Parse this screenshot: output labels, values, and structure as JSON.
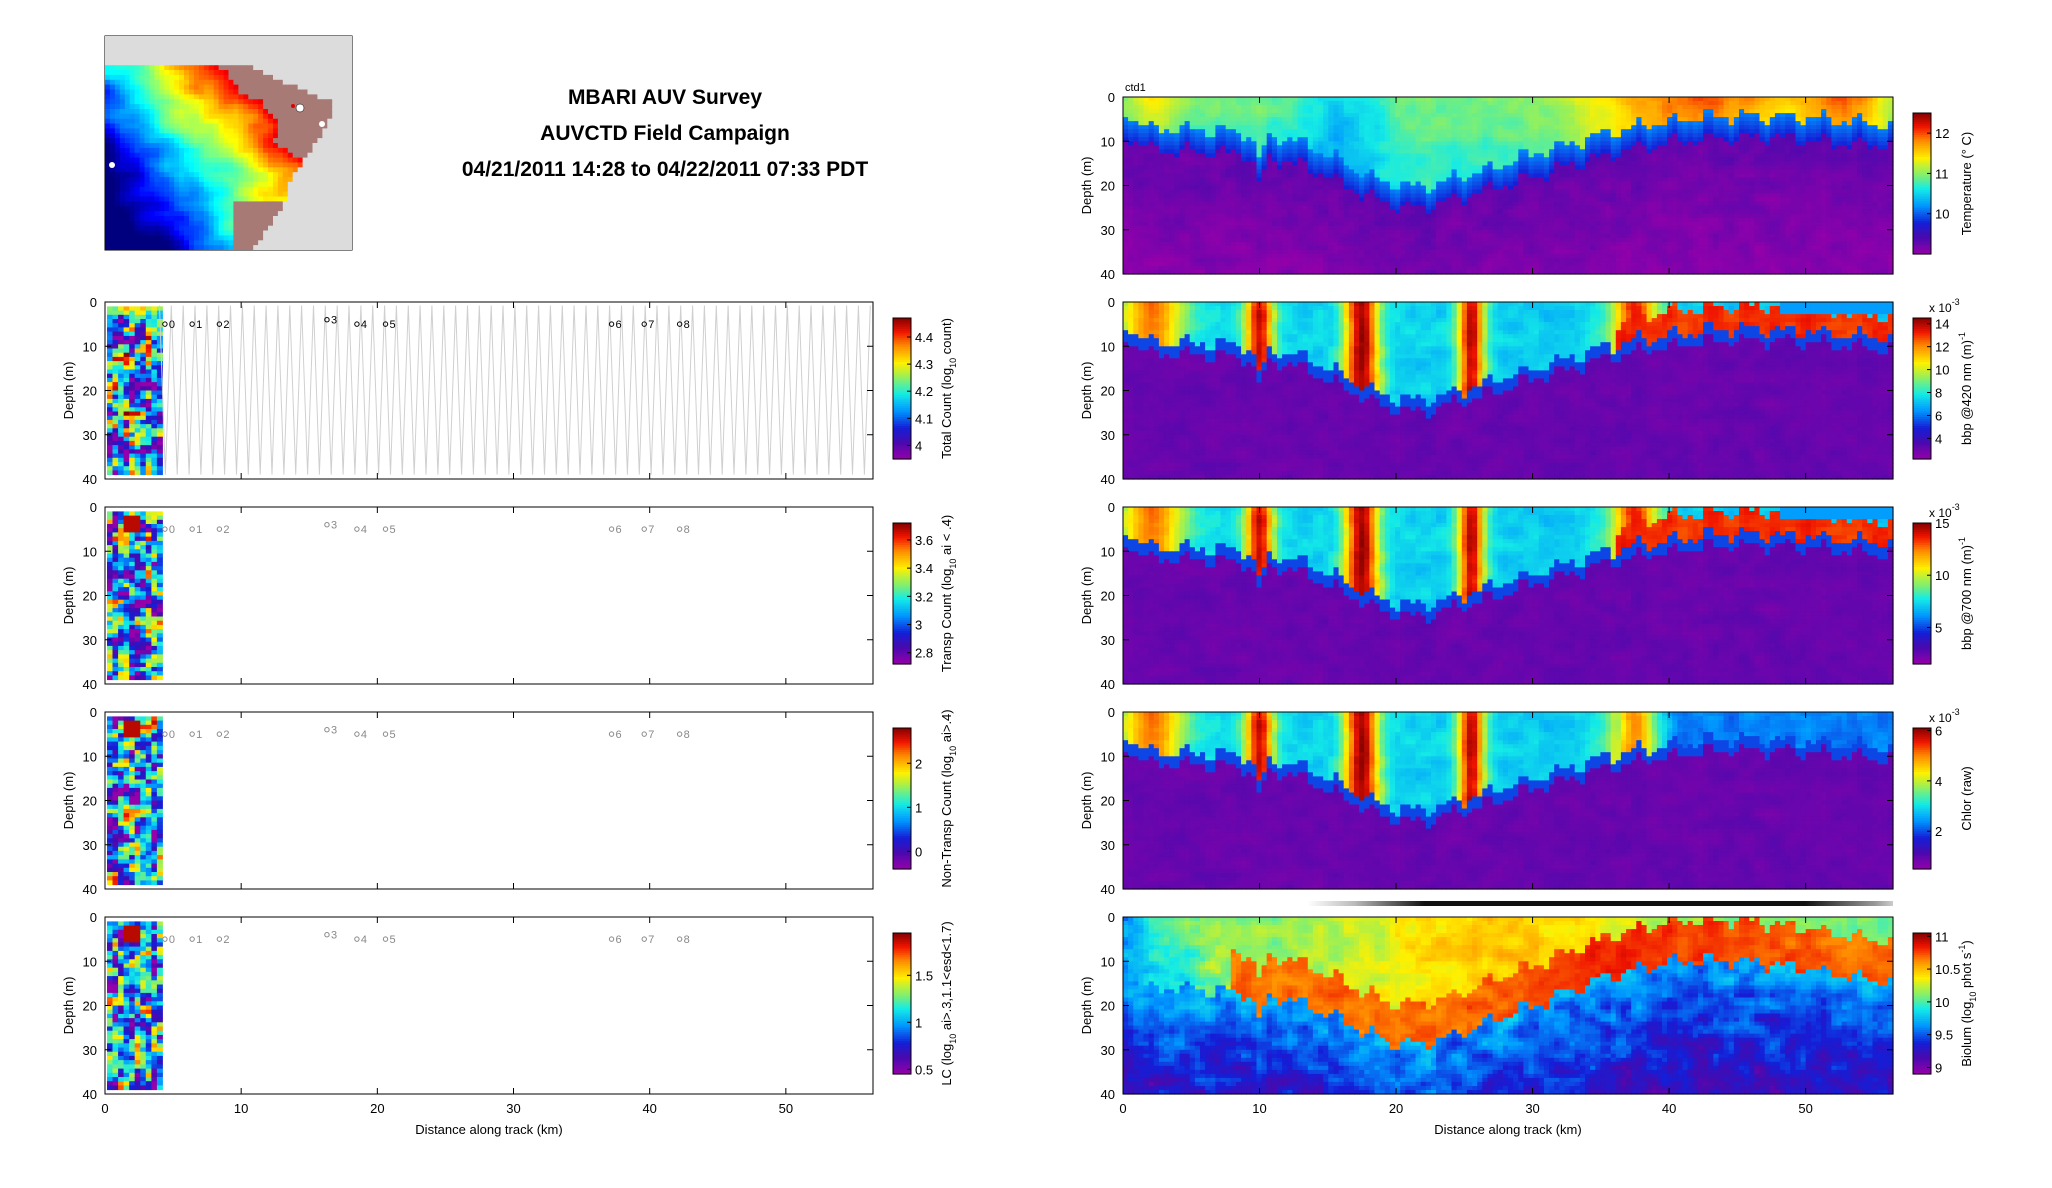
{
  "header": {
    "title": "MBARI AUV Survey",
    "subtitle": "AUVCTD Field Campaign",
    "period": "04/21/2011 14:28 to 04/22/2011 07:33 PDT"
  },
  "map": {
    "land_color": "#a87a76",
    "colormap": "jet"
  },
  "chart_data": [
    {
      "type": "heatmap",
      "panel": "left-1",
      "ylabel": "Depth (m)",
      "xlabel": "",
      "xlim": [
        0,
        56.4
      ],
      "ylim": [
        40,
        0
      ],
      "yticks": [
        0,
        10,
        20,
        30,
        40
      ],
      "xticks": [],
      "colorbar": {
        "label": "Total Count (log",
        "label_sub": "10",
        "label_tail": " count)",
        "min": 3.95,
        "max": 4.47,
        "ticks": [
          4,
          4.1,
          4.2,
          4.3,
          4.4
        ]
      },
      "data_extent_km": [
        0,
        4.0
      ],
      "track_lines": true,
      "stations": [
        {
          "label": "0",
          "x": 4.4,
          "y": 5
        },
        {
          "label": "1",
          "x": 6.4,
          "y": 5
        },
        {
          "label": "2",
          "x": 8.4,
          "y": 5
        },
        {
          "label": "3",
          "x": 16.3,
          "y": 4
        },
        {
          "label": "4",
          "x": 18.5,
          "y": 5
        },
        {
          "label": "5",
          "x": 20.6,
          "y": 5
        },
        {
          "label": "6",
          "x": 37.2,
          "y": 5
        },
        {
          "label": "7",
          "x": 39.6,
          "y": 5
        },
        {
          "label": "8",
          "x": 42.2,
          "y": 5
        }
      ]
    },
    {
      "type": "heatmap",
      "panel": "left-2",
      "ylabel": "Depth (m)",
      "xlabel": "",
      "xlim": [
        0,
        56.4
      ],
      "ylim": [
        40,
        0
      ],
      "yticks": [
        0,
        10,
        20,
        30,
        40
      ],
      "xticks": [],
      "colorbar": {
        "label": "Transp Count (log",
        "label_sub": "10",
        "label_tail": " ai < .4)",
        "min": 2.72,
        "max": 3.72,
        "ticks": [
          2.8,
          3,
          3.2,
          3.4,
          3.6
        ]
      },
      "data_extent_km": [
        0,
        4.0
      ],
      "stations_ref": "left-1"
    },
    {
      "type": "heatmap",
      "panel": "left-3",
      "ylabel": "Depth (m)",
      "xlabel": "",
      "xlim": [
        0,
        56.4
      ],
      "ylim": [
        40,
        0
      ],
      "yticks": [
        0,
        10,
        20,
        30,
        40
      ],
      "xticks": [],
      "colorbar": {
        "label": "Non-Transp Count (log",
        "label_sub": "10",
        "label_tail": " ai>.4)",
        "min": -0.4,
        "max": 2.8,
        "ticks": [
          0,
          1,
          2
        ]
      },
      "data_extent_km": [
        0,
        4.0
      ],
      "stations_ref": "left-1"
    },
    {
      "type": "heatmap",
      "panel": "left-4",
      "ylabel": "Depth (m)",
      "xlabel": "Distance along track (km)",
      "xlim": [
        0,
        56.4
      ],
      "ylim": [
        40,
        0
      ],
      "yticks": [
        0,
        10,
        20,
        30,
        40
      ],
      "xticks": [
        0,
        10,
        20,
        30,
        40,
        50
      ],
      "colorbar": {
        "label": "LC (log",
        "label_sub": "10",
        "label_tail": " ai>.3,1.1<esd<1.7)",
        "min": 0.45,
        "max": 1.95,
        "ticks": [
          0.5,
          1,
          1.5
        ]
      },
      "data_extent_km": [
        0,
        4.0
      ],
      "stations_ref": "left-1"
    },
    {
      "type": "heatmap",
      "panel": "right-1",
      "title": "ctd1",
      "ylabel": "Depth (m)",
      "xlabel": "",
      "xlim": [
        0,
        56.4
      ],
      "ylim": [
        40,
        0
      ],
      "yticks": [
        0,
        10,
        20,
        30,
        40
      ],
      "xticks": [],
      "colorbar": {
        "label": "Temperature (° C)",
        "min": 9.0,
        "max": 12.5,
        "ticks": [
          10,
          11,
          12
        ]
      },
      "data_extent_km": [
        0,
        56.4
      ],
      "field": "temperature"
    },
    {
      "type": "heatmap",
      "panel": "right-2",
      "ylabel": "Depth (m)",
      "xlabel": "",
      "xlim": [
        0,
        56.4
      ],
      "ylim": [
        40,
        0
      ],
      "yticks": [
        0,
        10,
        20,
        30,
        40
      ],
      "xticks": [],
      "colorbar": {
        "label": "bbp @420 nm (m",
        "label_sup": "-1",
        "label_tail": ")",
        "exponent": "x 10",
        "exponent_sup": "-3",
        "min": 2.2,
        "max": 14.5,
        "ticks": [
          4,
          6,
          8,
          10,
          12,
          14
        ]
      },
      "data_extent_km": [
        0,
        56.4
      ],
      "field": "bbp420"
    },
    {
      "type": "heatmap",
      "panel": "right-3",
      "ylabel": "Depth (m)",
      "xlabel": "",
      "xlim": [
        0,
        56.4
      ],
      "ylim": [
        40,
        0
      ],
      "yticks": [
        0,
        10,
        20,
        30,
        40
      ],
      "xticks": [],
      "colorbar": {
        "label": "bbp @700 nm (m",
        "label_sup": "-1",
        "label_tail": ")",
        "exponent": "x 10",
        "exponent_sup": "-3",
        "min": 1.5,
        "max": 15,
        "ticks": [
          5,
          10,
          15
        ]
      },
      "data_extent_km": [
        0,
        56.4
      ],
      "field": "bbp700"
    },
    {
      "type": "heatmap",
      "panel": "right-4",
      "ylabel": "Depth (m)",
      "xlabel": "",
      "xlim": [
        0,
        56.4
      ],
      "ylim": [
        40,
        0
      ],
      "yticks": [
        0,
        10,
        20,
        30,
        40
      ],
      "xticks": [],
      "colorbar": {
        "label": "Chlor (raw)",
        "exponent": "x 10",
        "exponent_sup": "-3",
        "min": 0.5,
        "max": 6.1,
        "ticks": [
          2,
          4,
          6
        ]
      },
      "data_extent_km": [
        0,
        56.4
      ],
      "field": "chlor",
      "daylight_bar": true
    },
    {
      "type": "heatmap",
      "panel": "right-5",
      "ylabel": "Depth (m)",
      "xlabel": "Distance along track (km)",
      "xlim": [
        0,
        56.4
      ],
      "ylim": [
        40,
        0
      ],
      "yticks": [
        0,
        10,
        20,
        30,
        40
      ],
      "xticks": [
        0,
        10,
        20,
        30,
        40,
        50
      ],
      "colorbar": {
        "label": "Biolum (log",
        "label_sub": "10",
        "label_tail": " phot s",
        "label_sup": "-1",
        "label_tail2": ")",
        "min": 8.9,
        "max": 11.05,
        "ticks": [
          9,
          9.5,
          10,
          10.5,
          11
        ]
      },
      "data_extent_km": [
        0,
        56.4
      ],
      "field": "biolum"
    }
  ]
}
